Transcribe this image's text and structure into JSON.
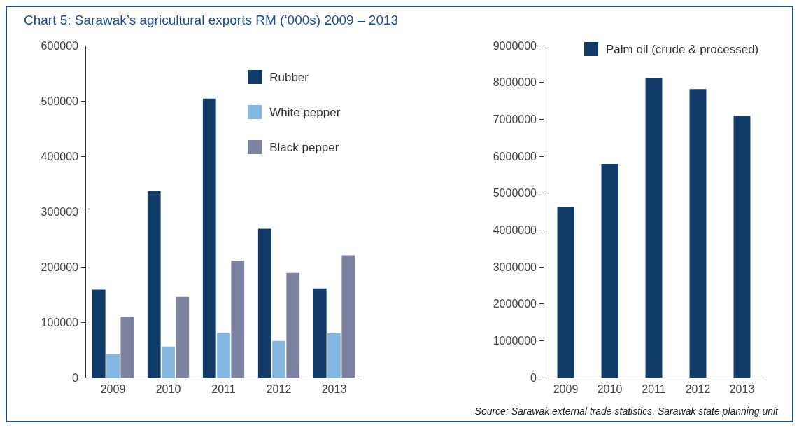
{
  "chart_data": [
    {
      "type": "bar",
      "title": "Chart 5: Sarawak’s agricultural exports RM (‘000s) 2009 – 2013",
      "categories": [
        "2009",
        "2010",
        "2011",
        "2012",
        "2013"
      ],
      "series": [
        {
          "name": "Rubber",
          "color": "#113c69",
          "values": [
            159000,
            337000,
            504000,
            269000,
            161000
          ]
        },
        {
          "name": "White pepper",
          "color": "#85b7e3",
          "values": [
            43000,
            56000,
            80000,
            66000,
            80000
          ]
        },
        {
          "name": "Black pepper",
          "color": "#7c829f",
          "values": [
            110000,
            146000,
            211000,
            189000,
            221000
          ]
        }
      ],
      "ylim": [
        0,
        600000
      ],
      "yticks": [
        0,
        100000,
        200000,
        300000,
        400000,
        500000,
        600000
      ],
      "grid": false,
      "legend": "top right"
    },
    {
      "type": "bar",
      "categories": [
        "2009",
        "2010",
        "2011",
        "2012",
        "2013"
      ],
      "series": [
        {
          "name": "Palm oil (crude & processed)",
          "color": "#113c69",
          "values": [
            4620000,
            5790000,
            8110000,
            7820000,
            7090000
          ]
        }
      ],
      "ylim": [
        0,
        9000000
      ],
      "yticks": [
        0,
        1000000,
        2000000,
        3000000,
        4000000,
        5000000,
        6000000,
        7000000,
        8000000,
        9000000
      ],
      "grid": false,
      "legend": "top right",
      "annotations": [
        "Source: Sarawak external trade statistics, Sarawak state planning unit"
      ]
    }
  ]
}
